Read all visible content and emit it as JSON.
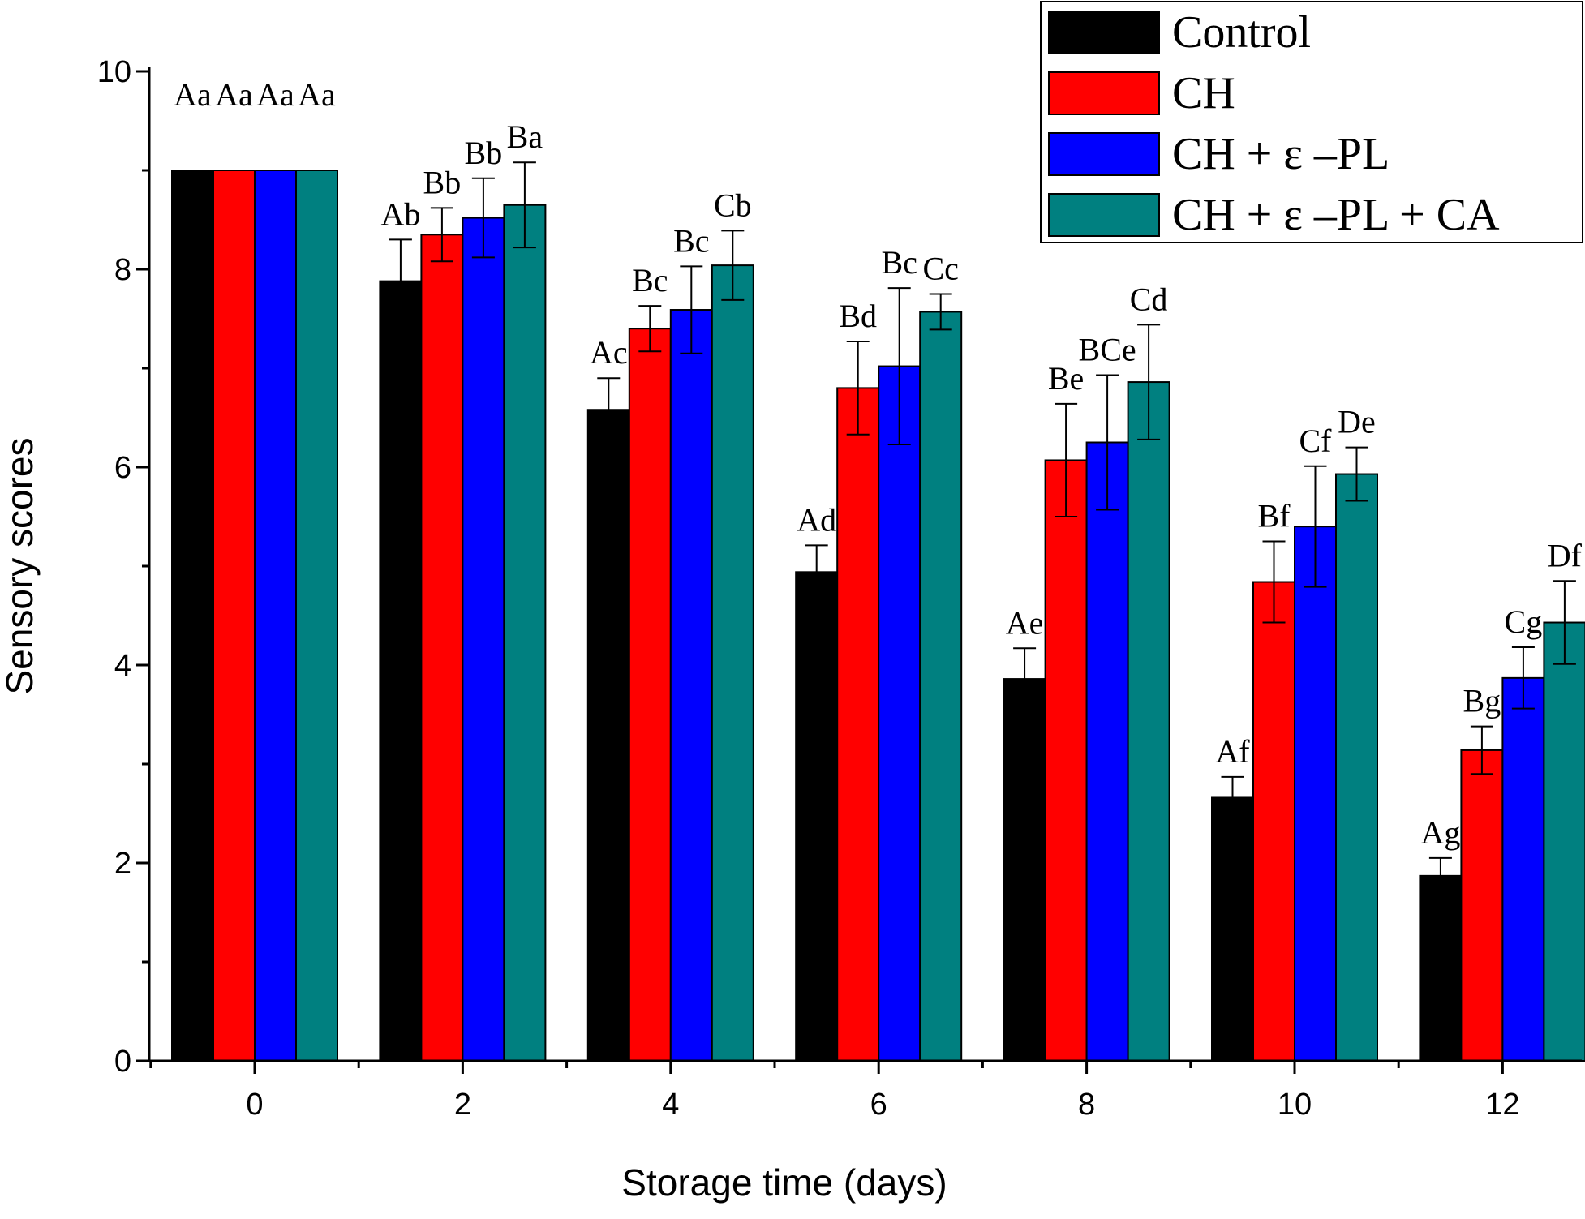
{
  "chart_data": {
    "type": "bar",
    "xlabel": "Storage time (days)",
    "ylabel": "Sensory scores",
    "ylim": [
      0,
      10
    ],
    "yticks": [
      0,
      2,
      4,
      6,
      8,
      10
    ],
    "categories": [
      "0",
      "2",
      "4",
      "6",
      "8",
      "10",
      "12"
    ],
    "grid": false,
    "legend_position": "top-right",
    "series": [
      {
        "name": "Control",
        "color": "#000000",
        "values": [
          9.0,
          7.88,
          6.58,
          4.94,
          3.86,
          2.66,
          1.87
        ],
        "errors": [
          0,
          0.42,
          0.32,
          0.27,
          0.31,
          0.21,
          0.18
        ],
        "labels": [
          "Aa",
          "Ab",
          "Ac",
          "Ad",
          "Ae",
          "Af",
          "Ag"
        ]
      },
      {
        "name": "CH",
        "color": "#ff0000",
        "values": [
          9.0,
          8.35,
          7.4,
          6.8,
          6.07,
          4.84,
          3.14
        ],
        "errors": [
          0,
          0.27,
          0.23,
          0.47,
          0.57,
          0.41,
          0.24
        ],
        "labels": [
          "Aa",
          "Bb",
          "Bc",
          "Bd",
          "Be",
          "Bf",
          "Bg"
        ]
      },
      {
        "name": "CH + ε –PL",
        "color": "#0000ff",
        "values": [
          9.0,
          8.52,
          7.59,
          7.02,
          6.25,
          5.4,
          3.87
        ],
        "errors": [
          0,
          0.4,
          0.44,
          0.79,
          0.68,
          0.61,
          0.31
        ],
        "labels": [
          "Aa",
          "Bb",
          "Bc",
          "Bc",
          "BCe",
          "Cf",
          "Cg"
        ]
      },
      {
        "name": "CH + ε –PL + CA",
        "color": "#008080",
        "values": [
          9.0,
          8.65,
          8.04,
          7.57,
          6.86,
          5.93,
          4.43
        ],
        "errors": [
          0,
          0.43,
          0.35,
          0.18,
          0.58,
          0.27,
          0.42
        ],
        "labels": [
          "Aa",
          "Ba",
          "Cb",
          "Cc",
          "Cd",
          "De",
          "Df"
        ]
      }
    ]
  }
}
